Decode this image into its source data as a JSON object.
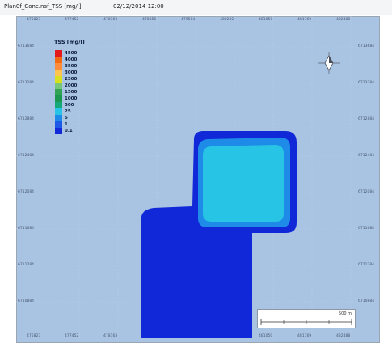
{
  "window": {
    "title": "Plan0f_Conc.nsf_TSS [mg/l]",
    "timestamp": "02/12/2014 12:00"
  },
  "map": {
    "legend": {
      "title": "TSS [mg/l]",
      "items": [
        {
          "label": "4500",
          "color": "#e31a1c"
        },
        {
          "label": "4000",
          "color": "#f16913"
        },
        {
          "label": "3500",
          "color": "#fd8d3c"
        },
        {
          "label": "3000",
          "color": "#fec44f"
        },
        {
          "label": "2500",
          "color": "#d9e021"
        },
        {
          "label": "2000",
          "color": "#78c679"
        },
        {
          "label": "1500",
          "color": "#31a354"
        },
        {
          "label": "1000",
          "color": "#1a9850"
        },
        {
          "label": "500",
          "color": "#16a87a"
        },
        {
          "label": "25",
          "color": "#27c4e6"
        },
        {
          "label": "5",
          "color": "#1e8be8"
        },
        {
          "label": "1",
          "color": "#1d58e6"
        },
        {
          "label": "0.1",
          "color": "#1028d8"
        }
      ]
    },
    "x_ticks_top": [
      "475823",
      "477452",
      "478163",
      "478856",
      "479584",
      "480282",
      "481050",
      "481769",
      "482488"
    ],
    "x_ticks_bottom": [
      "475823",
      "477452",
      "478163",
      "478856",
      "479584",
      "480282",
      "481050",
      "481769",
      "482488"
    ],
    "y_ticks_left": [
      "6713684",
      "6713284",
      "6712884",
      "6712484",
      "6712084",
      "6711684",
      "6711284",
      "6710884"
    ],
    "y_ticks_right": [
      "6713684",
      "6713284",
      "6712884",
      "6712484",
      "6712084",
      "6711684",
      "6711284",
      "6710884"
    ],
    "scale": {
      "label": "500 m"
    },
    "colors": {
      "background": "#a9c3e2",
      "outer_plume": "#1028d8",
      "mid_plume": "#1e8be8",
      "inner_plume": "#27c4e6"
    }
  }
}
